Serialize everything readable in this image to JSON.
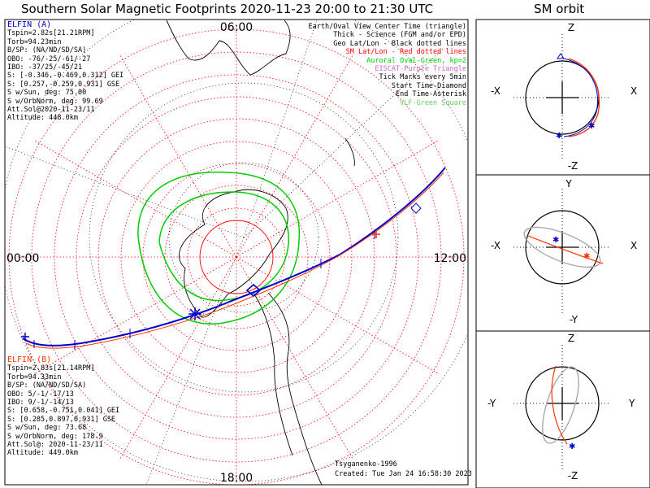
{
  "main_title": "Southern Solar Magnetic Footprints 2020-11-23 20:00 to 21:30 UTC",
  "orbit_title": "SM orbit",
  "map": {
    "hour_labels": {
      "top": "06:00",
      "left": "00:00",
      "right": "12:00",
      "bottom": "18:00"
    }
  },
  "legend": [
    {
      "text": "Earth/Oval View Center Time (triangle)",
      "color": "#000000"
    },
    {
      "text": "Thick - Science (FGM and/or EPD)",
      "color": "#000000"
    },
    {
      "text": "Geo Lat/Lon - Black dotted lines",
      "color": "#000000"
    },
    {
      "text": "SM Lat/Lon - Red dotted lines",
      "color": "#ff0000"
    },
    {
      "text": "Auroral Oval-Green, kp=2",
      "color": "#00cc00"
    },
    {
      "text": "EISCAT-Purple Triangle",
      "color": "#cc66cc"
    },
    {
      "text": "Tick Marks every 5min",
      "color": "#000000"
    },
    {
      "text": "Start Time-Diamond",
      "color": "#000000"
    },
    {
      "text": "End Time-Asterisk",
      "color": "#000000"
    },
    {
      "text": "VLF-Green Square",
      "color": "#66cc66"
    }
  ],
  "elfin_a": {
    "name": "ELFIN (A)",
    "color": "#0000cc",
    "lines": [
      "Tspin=2.82s[21.21RPM]",
      "Torb=94.23min",
      "B/SP: (NA/ND/SD/SA)",
      "OBO: -76/-25/-61/-27",
      "IBO: -37/25/-45/21",
      "S: [-0.346,-0.469,0.312] GEI",
      "S: [0.257,-0.259,0.931] GSE",
      "S w/Sun, deg: 75.00",
      "S w/OrbNorm, deg: 99.69",
      "Att.Sol@2020-11-23/11",
      "Altitude: 448.0km"
    ]
  },
  "elfin_b": {
    "name": "ELFIN (B)",
    "color": "#ff3300",
    "lines": [
      "Tspin=2.83s[21.14RPM]",
      "Torb=94.33min",
      "B/SP: (NA/ND/SD/SA)",
      "OBO: 5/-1/-17/13",
      "IBO: 9/-1/-14/13",
      "S: [0.658,-0.751,0.041] GEI",
      "S: [0.285,0.897,0.931] GSE",
      "S w/Sun, deg: 73.68",
      "S w/OrbNorm, deg: 178.9",
      "Att.Sol@: 2020-11-23/11",
      "Altitude: 449.0km"
    ]
  },
  "footer": {
    "author": "Tsyganenko-1996",
    "created": "Created: Tue Jan 24 16:58:30 2023"
  },
  "orbit_panels": [
    {
      "top": "Z",
      "bottom": "-Z",
      "left": "-X",
      "right": "X"
    },
    {
      "top": "Y",
      "bottom": "-Y",
      "left": "-X",
      "right": "X"
    },
    {
      "top": "Z",
      "bottom": "-Z",
      "left": "-Y",
      "right": "Y"
    }
  ],
  "colors": {
    "elfin_a_track": "#0000cc",
    "elfin_b_track": "#ff3300",
    "geo_grid": "#000000",
    "sm_grid": "#ff0000",
    "auroral_oval": "#00cc00"
  }
}
